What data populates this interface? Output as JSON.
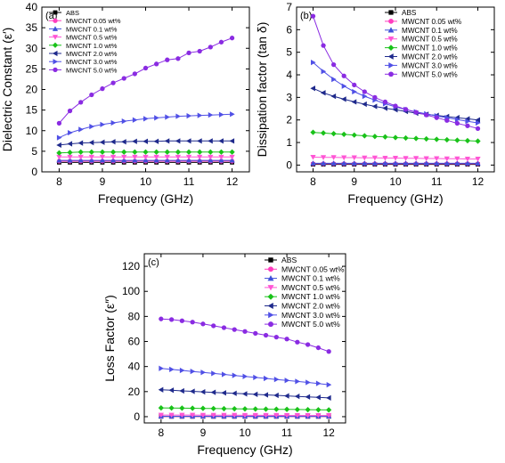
{
  "chart_data": [
    {
      "type": "line",
      "panel_label": "(a)",
      "xlabel": "Frequency (GHz)",
      "ylabel": "Dielectric Constant (ε′)",
      "xlim": [
        7.6,
        12.4
      ],
      "ylim": [
        0,
        40
      ],
      "xticks": [
        8,
        9,
        10,
        11,
        12
      ],
      "yticks": [
        0,
        5,
        10,
        15,
        20,
        25,
        30,
        35,
        40
      ],
      "legend_position": "top-left",
      "x": [
        8.0,
        8.25,
        8.5,
        8.75,
        9.0,
        9.25,
        9.5,
        9.75,
        10.0,
        10.25,
        10.5,
        10.75,
        11.0,
        11.25,
        11.5,
        11.75,
        12.0
      ],
      "series": [
        {
          "name": "ABS",
          "color": "#000000",
          "marker": "square",
          "values": [
            2.3,
            2.3,
            2.3,
            2.3,
            2.3,
            2.3,
            2.3,
            2.3,
            2.3,
            2.3,
            2.3,
            2.3,
            2.3,
            2.3,
            2.3,
            2.3,
            2.3
          ]
        },
        {
          "name": "MWCNT 0.05 wt%",
          "color": "#ff3dbf",
          "marker": "circle",
          "values": [
            2.6,
            2.6,
            2.6,
            2.6,
            2.6,
            2.6,
            2.6,
            2.6,
            2.6,
            2.6,
            2.6,
            2.6,
            2.6,
            2.6,
            2.6,
            2.6,
            2.6
          ]
        },
        {
          "name": "MWCNT 0.1 wt%",
          "color": "#3f51d8",
          "marker": "triangle-up",
          "values": [
            2.8,
            2.8,
            2.8,
            2.8,
            2.8,
            2.8,
            2.8,
            2.8,
            2.8,
            2.8,
            2.8,
            2.8,
            2.8,
            2.8,
            2.8,
            2.8,
            2.8
          ]
        },
        {
          "name": "MWCNT 0.5 wt%",
          "color": "#ff55d5",
          "marker": "triangle-down",
          "values": [
            3.6,
            3.6,
            3.6,
            3.6,
            3.6,
            3.6,
            3.6,
            3.6,
            3.6,
            3.6,
            3.6,
            3.6,
            3.6,
            3.6,
            3.6,
            3.6,
            3.6
          ]
        },
        {
          "name": "MWCNT 1.0 wt%",
          "color": "#19c219",
          "marker": "diamond",
          "values": [
            4.6,
            4.7,
            4.8,
            4.8,
            4.8,
            4.8,
            4.8,
            4.8,
            4.8,
            4.8,
            4.8,
            4.8,
            4.8,
            4.8,
            4.8,
            4.8,
            4.8
          ]
        },
        {
          "name": "MWCNT 2.0 wt%",
          "color": "#1f2a8c",
          "marker": "triangle-left",
          "values": [
            6.5,
            6.8,
            7.0,
            7.1,
            7.2,
            7.3,
            7.3,
            7.4,
            7.4,
            7.4,
            7.5,
            7.5,
            7.5,
            7.5,
            7.5,
            7.5,
            7.5
          ]
        },
        {
          "name": "MWCNT 3.0 wt%",
          "color": "#5050e6",
          "marker": "triangle-right",
          "values": [
            8.3,
            9.5,
            10.3,
            11.0,
            11.5,
            11.9,
            12.3,
            12.6,
            12.9,
            13.1,
            13.3,
            13.5,
            13.6,
            13.7,
            13.8,
            13.9,
            14.0
          ]
        },
        {
          "name": "MWCNT 5.0 wt%",
          "color": "#8a2be2",
          "marker": "circle",
          "values": [
            11.8,
            14.8,
            16.9,
            18.7,
            20.2,
            21.6,
            22.7,
            23.8,
            25.2,
            26.2,
            27.2,
            27.5,
            28.9,
            29.3,
            30.3,
            31.5,
            32.5
          ]
        }
      ]
    },
    {
      "type": "line",
      "panel_label": "(b)",
      "xlabel": "Frequency (GHz)",
      "ylabel": "Dissipation factor (tan δ)",
      "xlim": [
        7.6,
        12.4
      ],
      "ylim": [
        -0.3,
        7
      ],
      "xticks": [
        8,
        9,
        10,
        11,
        12
      ],
      "yticks": [
        0,
        1,
        2,
        3,
        4,
        5,
        6,
        7
      ],
      "legend_position": "top-right",
      "x": [
        8.0,
        8.25,
        8.5,
        8.75,
        9.0,
        9.25,
        9.5,
        9.75,
        10.0,
        10.25,
        10.5,
        10.75,
        11.0,
        11.25,
        11.5,
        11.75,
        12.0
      ],
      "series": [
        {
          "name": "ABS",
          "color": "#000000",
          "marker": "square",
          "values": [
            0.03,
            0.03,
            0.03,
            0.03,
            0.03,
            0.03,
            0.03,
            0.03,
            0.03,
            0.03,
            0.03,
            0.03,
            0.03,
            0.03,
            0.03,
            0.03,
            0.03
          ]
        },
        {
          "name": "MWCNT 0.05 wt%",
          "color": "#ff3dbf",
          "marker": "circle",
          "values": [
            0.06,
            0.06,
            0.06,
            0.06,
            0.06,
            0.06,
            0.06,
            0.06,
            0.06,
            0.06,
            0.06,
            0.06,
            0.06,
            0.06,
            0.06,
            0.06,
            0.06
          ]
        },
        {
          "name": "MWCNT 0.1 wt%",
          "color": "#3f51d8",
          "marker": "triangle-up",
          "values": [
            0.08,
            0.08,
            0.08,
            0.08,
            0.08,
            0.08,
            0.08,
            0.08,
            0.08,
            0.08,
            0.08,
            0.08,
            0.08,
            0.08,
            0.08,
            0.08,
            0.08
          ]
        },
        {
          "name": "MWCNT 0.5 wt%",
          "color": "#ff55d5",
          "marker": "triangle-down",
          "values": [
            0.35,
            0.34,
            0.34,
            0.33,
            0.33,
            0.32,
            0.32,
            0.31,
            0.31,
            0.3,
            0.3,
            0.29,
            0.29,
            0.28,
            0.28,
            0.27,
            0.27
          ]
        },
        {
          "name": "MWCNT 1.0 wt%",
          "color": "#19c219",
          "marker": "diamond",
          "values": [
            1.45,
            1.42,
            1.39,
            1.36,
            1.33,
            1.3,
            1.27,
            1.25,
            1.22,
            1.2,
            1.18,
            1.16,
            1.14,
            1.12,
            1.1,
            1.08,
            1.06
          ]
        },
        {
          "name": "MWCNT 2.0 wt%",
          "color": "#1f2a8c",
          "marker": "triangle-left",
          "values": [
            3.4,
            3.2,
            3.05,
            2.92,
            2.8,
            2.7,
            2.6,
            2.52,
            2.45,
            2.38,
            2.3,
            2.25,
            2.2,
            2.15,
            2.1,
            2.05,
            2.0
          ]
        },
        {
          "name": "MWCNT 3.0 wt%",
          "color": "#5050e6",
          "marker": "triangle-right",
          "values": [
            4.55,
            4.15,
            3.8,
            3.5,
            3.25,
            3.05,
            2.88,
            2.72,
            2.58,
            2.46,
            2.36,
            2.27,
            2.18,
            2.1,
            2.02,
            1.94,
            1.87
          ]
        },
        {
          "name": "MWCNT 5.0 wt%",
          "color": "#8a2be2",
          "marker": "circle",
          "values": [
            6.6,
            5.3,
            4.45,
            3.95,
            3.55,
            3.25,
            3.0,
            2.8,
            2.62,
            2.47,
            2.34,
            2.22,
            2.1,
            1.98,
            1.85,
            1.74,
            1.62
          ]
        }
      ]
    },
    {
      "type": "line",
      "panel_label": "(c)",
      "xlabel": "Frequency (GHz)",
      "ylabel": "Loss Factor (ε″)",
      "xlim": [
        7.6,
        12.4
      ],
      "ylim": [
        -5,
        130
      ],
      "xticks": [
        8,
        9,
        10,
        11,
        12
      ],
      "yticks": [
        0,
        20,
        40,
        60,
        80,
        100,
        120
      ],
      "legend_position": "top-right",
      "x": [
        8.0,
        8.25,
        8.5,
        8.75,
        9.0,
        9.25,
        9.5,
        9.75,
        10.0,
        10.25,
        10.5,
        10.75,
        11.0,
        11.25,
        11.5,
        11.75,
        12.0
      ],
      "series": [
        {
          "name": "ABS",
          "color": "#000000",
          "marker": "square",
          "values": [
            0.1,
            0.1,
            0.1,
            0.1,
            0.1,
            0.1,
            0.1,
            0.1,
            0.1,
            0.1,
            0.1,
            0.1,
            0.1,
            0.1,
            0.1,
            0.1,
            0.1
          ]
        },
        {
          "name": "MWCNT 0.05 wt%",
          "color": "#ff3dbf",
          "marker": "circle",
          "values": [
            0.2,
            0.2,
            0.2,
            0.2,
            0.2,
            0.2,
            0.2,
            0.2,
            0.2,
            0.2,
            0.2,
            0.2,
            0.2,
            0.2,
            0.2,
            0.2,
            0.2
          ]
        },
        {
          "name": "MWCNT 0.1 wt%",
          "color": "#3f51d8",
          "marker": "triangle-up",
          "values": [
            0.3,
            0.3,
            0.3,
            0.3,
            0.3,
            0.3,
            0.3,
            0.3,
            0.3,
            0.3,
            0.3,
            0.3,
            0.3,
            0.3,
            0.3,
            0.3,
            0.3
          ]
        },
        {
          "name": "MWCNT 0.5 wt%",
          "color": "#ff55d5",
          "marker": "triangle-down",
          "values": [
            1.3,
            1.3,
            1.3,
            1.3,
            1.2,
            1.2,
            1.2,
            1.2,
            1.1,
            1.1,
            1.1,
            1.1,
            1.0,
            1.0,
            1.0,
            1.0,
            1.0
          ]
        },
        {
          "name": "MWCNT 1.0 wt%",
          "color": "#19c219",
          "marker": "diamond",
          "values": [
            7.0,
            6.9,
            6.8,
            6.7,
            6.6,
            6.5,
            6.4,
            6.3,
            6.2,
            6.1,
            6.0,
            5.9,
            5.8,
            5.7,
            5.6,
            5.5,
            5.4
          ]
        },
        {
          "name": "MWCNT 2.0 wt%",
          "color": "#1f2a8c",
          "marker": "triangle-left",
          "values": [
            21.5,
            21.1,
            20.6,
            20.2,
            19.8,
            19.4,
            19.0,
            18.6,
            18.2,
            17.8,
            17.4,
            17.0,
            16.6,
            16.2,
            15.8,
            15.4,
            15.0
          ]
        },
        {
          "name": "MWCNT 3.0 wt%",
          "color": "#5050e6",
          "marker": "triangle-right",
          "values": [
            38.5,
            37.7,
            36.9,
            36.1,
            35.3,
            34.5,
            33.7,
            32.9,
            32.1,
            31.3,
            30.5,
            29.7,
            28.9,
            28.1,
            27.3,
            26.5,
            25.5
          ]
        },
        {
          "name": "MWCNT 5.0 wt%",
          "color": "#8a2be2",
          "marker": "circle",
          "values": [
            78.0,
            77.5,
            76.5,
            75.5,
            74.0,
            72.5,
            71.0,
            69.5,
            68.0,
            66.5,
            65.0,
            63.5,
            62.0,
            59.5,
            57.5,
            55.0,
            52.0
          ]
        }
      ]
    }
  ]
}
